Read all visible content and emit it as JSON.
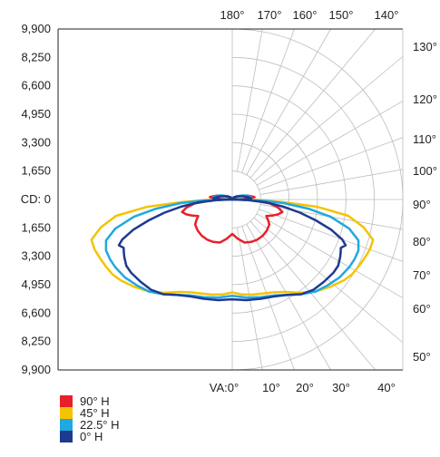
{
  "chart_data": {
    "type": "polar",
    "y_ticks": [
      "9,900",
      "8,250",
      "6,600",
      "4,950",
      "3,300",
      "1,650",
      "CD: 0",
      "1,650",
      "3,300",
      "4,950",
      "6,600",
      "8,250",
      "9,900"
    ],
    "bottom_angle_ticks": [
      "VA:0°",
      "10°",
      "20°",
      "30°",
      "40°"
    ],
    "top_angle_ticks": [
      "180°",
      "170°",
      "160°",
      "150°",
      "140°"
    ],
    "right_angle_ticks": [
      "130°",
      "120°",
      "110°",
      "100°",
      "90°",
      "80°",
      "70°",
      "60°",
      "50°"
    ],
    "rmax": 9900,
    "series": [
      {
        "name": "90° H",
        "color": "#e8202a",
        "points": [
          [
            0,
            2000
          ],
          [
            8,
            2300
          ],
          [
            16,
            2600
          ],
          [
            24,
            2700
          ],
          [
            32,
            2750
          ],
          [
            40,
            2750
          ],
          [
            48,
            2700
          ],
          [
            56,
            2600
          ],
          [
            60,
            2400
          ],
          [
            64,
            2200
          ],
          [
            68,
            2500
          ],
          [
            72,
            2800
          ],
          [
            76,
            3000
          ],
          [
            80,
            2700
          ],
          [
            84,
            2200
          ],
          [
            86,
            1500
          ],
          [
            88,
            1000
          ],
          [
            89,
            500
          ],
          [
            90,
            0
          ],
          [
            91,
            400
          ],
          [
            93,
            900
          ],
          [
            96,
            1300
          ],
          [
            100,
            1100
          ],
          [
            105,
            900
          ],
          [
            110,
            650
          ],
          [
            115,
            450
          ],
          [
            125,
            250
          ],
          [
            140,
            120
          ],
          [
            180,
            0
          ]
        ]
      },
      {
        "name": "45° H",
        "color": "#f5c300",
        "points": [
          [
            0,
            5400
          ],
          [
            6,
            5550
          ],
          [
            12,
            5650
          ],
          [
            18,
            5750
          ],
          [
            24,
            5900
          ],
          [
            30,
            6200
          ],
          [
            36,
            6700
          ],
          [
            42,
            7200
          ],
          [
            48,
            7600
          ],
          [
            54,
            8000
          ],
          [
            58,
            8200
          ],
          [
            62,
            8300
          ],
          [
            66,
            8400
          ],
          [
            70,
            8500
          ],
          [
            74,
            8500
          ],
          [
            78,
            7800
          ],
          [
            82,
            6800
          ],
          [
            85,
            5000
          ],
          [
            87,
            3000
          ],
          [
            89,
            1500
          ],
          [
            90,
            0
          ],
          [
            91,
            1000
          ],
          [
            93,
            1100
          ],
          [
            97,
            1100
          ],
          [
            102,
            900
          ],
          [
            110,
            600
          ],
          [
            125,
            300
          ],
          [
            145,
            150
          ],
          [
            180,
            0
          ]
        ]
      },
      {
        "name": "22.5° H",
        "color": "#1fa9e1",
        "points": [
          [
            0,
            5600
          ],
          [
            8,
            5750
          ],
          [
            16,
            5900
          ],
          [
            24,
            6100
          ],
          [
            30,
            6400
          ],
          [
            36,
            6800
          ],
          [
            42,
            7200
          ],
          [
            48,
            7450
          ],
          [
            54,
            7700
          ],
          [
            60,
            7850
          ],
          [
            64,
            7900
          ],
          [
            68,
            7900
          ],
          [
            72,
            7700
          ],
          [
            76,
            7000
          ],
          [
            80,
            5800
          ],
          [
            83,
            4500
          ],
          [
            86,
            3000
          ],
          [
            88,
            1700
          ],
          [
            90,
            0
          ],
          [
            91,
            900
          ],
          [
            93,
            1000
          ],
          [
            97,
            1100
          ],
          [
            102,
            1000
          ],
          [
            110,
            700
          ],
          [
            125,
            350
          ],
          [
            145,
            150
          ],
          [
            180,
            0
          ]
        ]
      },
      {
        "name": "0° H",
        "color": "#1e3a8f",
        "points": [
          [
            0,
            5800
          ],
          [
            8,
            5900
          ],
          [
            16,
            6000
          ],
          [
            24,
            6150
          ],
          [
            30,
            6400
          ],
          [
            36,
            6800
          ],
          [
            42,
            7050
          ],
          [
            48,
            7150
          ],
          [
            54,
            7250
          ],
          [
            58,
            7250
          ],
          [
            62,
            7100
          ],
          [
            64,
            7000
          ],
          [
            66,
            6900
          ],
          [
            68,
            7100
          ],
          [
            70,
            6800
          ],
          [
            73,
            6000
          ],
          [
            76,
            5000
          ],
          [
            79,
            4000
          ],
          [
            82,
            3000
          ],
          [
            85,
            2000
          ],
          [
            88,
            900
          ],
          [
            90,
            0
          ],
          [
            91,
            700
          ],
          [
            93,
            1100
          ],
          [
            97,
            1000
          ],
          [
            102,
            800
          ],
          [
            110,
            550
          ],
          [
            125,
            300
          ],
          [
            145,
            150
          ],
          [
            180,
            0
          ]
        ]
      }
    ]
  }
}
